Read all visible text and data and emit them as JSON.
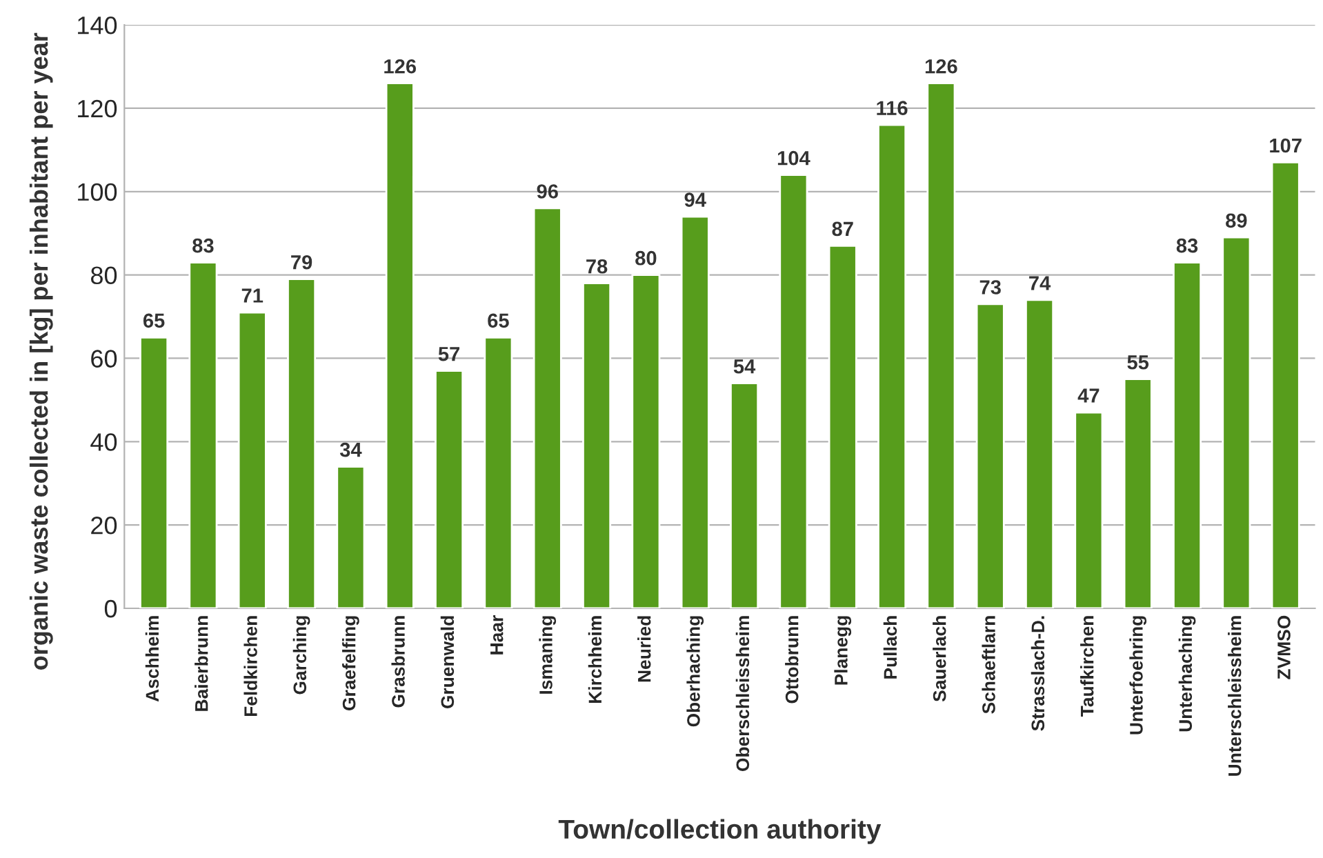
{
  "chart_data": {
    "type": "bar",
    "xlabel": "Town/collection authority",
    "ylabel": "organic waste collected in [kg] per inhabitant per year",
    "categories": [
      "Aschheim",
      "Baierbrunn",
      "Feldkirchen",
      "Garching",
      "Graefelfing",
      "Grasbrunn",
      "Gruenwald",
      "Haar",
      "Ismaning",
      "Kirchheim",
      "Neuried",
      "Oberhaching",
      "Oberschleissheim",
      "Ottobrunn",
      "Planegg",
      "Pullach",
      "Sauerlach",
      "Schaeftlarn",
      "Strasslach-D.",
      "Taufkirchen",
      "Unterfoehring",
      "Unterhaching",
      "Unterschleissheim",
      "ZVMSO"
    ],
    "values": [
      65,
      83,
      71,
      79,
      34,
      126,
      57,
      65,
      96,
      78,
      80,
      94,
      54,
      104,
      87,
      116,
      126,
      73,
      74,
      47,
      55,
      83,
      89,
      107
    ],
    "color": "#579d1c",
    "ylim": [
      0,
      140
    ],
    "yticks": [
      0,
      20,
      40,
      60,
      80,
      100,
      120,
      140
    ],
    "grid": "y",
    "data_labels": true
  }
}
